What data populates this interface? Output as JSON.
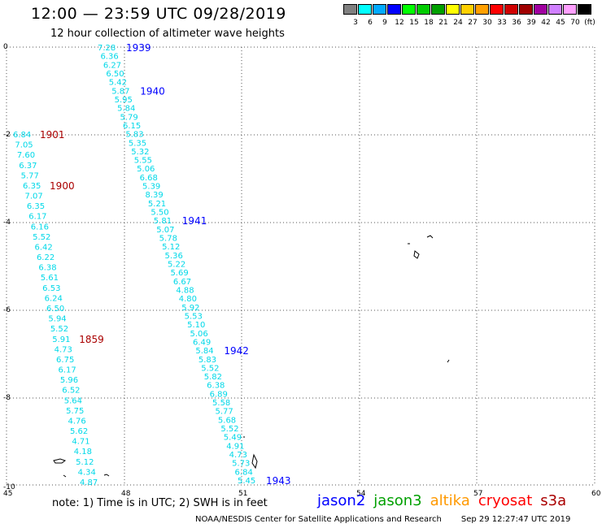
{
  "header": {
    "title": "12:00 — 23:59 UTC 09/28/2019",
    "subtitle": "12 hour collection of altimeter wave heights"
  },
  "legend": {
    "colors": [
      "#808080",
      "#00ffff",
      "#00aaff",
      "#0000ff",
      "#00ff00",
      "#00cc00",
      "#00a000",
      "#ffff00",
      "#ffd000",
      "#ffa000",
      "#ff0000",
      "#d00000",
      "#a00000",
      "#a000a0",
      "#d080ff",
      "#ffa0ff",
      "#000000"
    ],
    "labels": [
      "3",
      "6",
      "9",
      "12",
      "15",
      "18",
      "21",
      "24",
      "27",
      "30",
      "33",
      "36",
      "39",
      "42",
      "45",
      "70",
      "(ft)"
    ]
  },
  "axes": {
    "x_ticks": [
      "45",
      "48",
      "51",
      "54",
      "57",
      "60"
    ],
    "y_ticks": [
      "0",
      "-2",
      "-4",
      "-6",
      "-8",
      "-10"
    ]
  },
  "colors": {
    "swh": "#00d8e8",
    "jason2": "#0000ff",
    "cryosat": "#aa0000",
    "grid": "#555555"
  },
  "tracks": [
    {
      "values": [
        "7.28",
        "6.36",
        "6.27",
        "6.50",
        "5.42",
        "5.87",
        "5.95",
        "5.84",
        "5.79",
        "6.15",
        "5.83",
        "5.35",
        "5.32",
        "5.55",
        "5.06",
        "6.68",
        "5.39",
        "8.39",
        "5.21",
        "5.50",
        "5.81",
        "5.07",
        "5.78",
        "5.12",
        "5.36",
        "5.22",
        "5.69",
        "6.67",
        "4.88",
        "4.80",
        "5.92",
        "5.53",
        "5.10",
        "5.06",
        "6.49",
        "5.84",
        "5.83",
        "5.52",
        "5.82",
        "6.38",
        "6.89",
        "5.58",
        "5.77",
        "5.68",
        "5.52",
        "5.49",
        "4.91",
        "4.73",
        "5.73",
        "6.84",
        "5.45"
      ],
      "times": [
        {
          "t": "1939",
          "color": "#0000ff",
          "index": 0
        },
        {
          "t": "1940",
          "color": "#0000ff",
          "index": 5
        },
        {
          "t": "1941",
          "color": "#0000ff",
          "index": 20
        },
        {
          "t": "1942",
          "color": "#0000ff",
          "index": 35
        },
        {
          "t": "1943",
          "color": "#0000ff",
          "index": 50
        }
      ]
    },
    {
      "values": [
        "6.84",
        "7.05",
        "7.60",
        "6.37",
        "5.77",
        "6.35",
        "7.07",
        "6.35",
        "6.17",
        "6.16",
        "5.52",
        "6.42",
        "6.22",
        "6.38",
        "5.61",
        "6.53",
        "6.24",
        "6.50",
        "5.94",
        "5.52",
        "5.91",
        "4.73",
        "6.75",
        "6.17",
        "5.96",
        "6.52",
        "5.64",
        "5.75",
        "4.76",
        "5.62",
        "4.71",
        "4.18",
        "5.12",
        "4.34",
        "4.87"
      ],
      "times": [
        {
          "t": "1901",
          "color": "#aa0000",
          "index": 0
        },
        {
          "t": "1900",
          "color": "#aa0000",
          "index": 5
        },
        {
          "t": "1859",
          "color": "#aa0000",
          "index": 20
        }
      ]
    }
  ],
  "note": "note:  1) Time is in UTC; 2) SWH is in feet",
  "missions": [
    {
      "name": "jason2",
      "color": "#0000ff"
    },
    {
      "name": "jason3",
      "color": "#00a000"
    },
    {
      "name": "altika",
      "color": "#ff9900"
    },
    {
      "name": "cryosat",
      "color": "#ff0000"
    },
    {
      "name": "s3a",
      "color": "#aa0000"
    }
  ],
  "credit": "NOAA/NESDIS Center for Satellite Applications and Research",
  "timestamp": "Sep 29 12:27:47 UTC 2019"
}
